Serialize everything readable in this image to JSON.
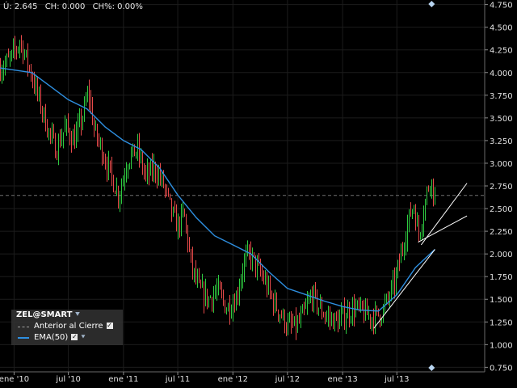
{
  "info": {
    "last": "Ú: 2.645",
    "ch": "CH: 0.000",
    "chp": "CH%: 0.00%"
  },
  "legend": {
    "title": "ZEL@SMART",
    "items": [
      {
        "label": "Anterior al Cierre",
        "color": "#a0a0a0",
        "style": "dashed"
      },
      {
        "label": "EMA(50)",
        "color": "#2e8fe0",
        "style": "solid"
      }
    ]
  },
  "colors": {
    "up": "#2ecc40",
    "down": "#e84a4a",
    "ema": "#2e8fe0",
    "trend": "#ffffff",
    "prev_close": "#a0a0a0",
    "marker": "#b8d4f0"
  },
  "icons": {
    "pin": "pin-icon",
    "check": "checkbox-icon",
    "marker": "diamond-marker-icon"
  },
  "chart_data": {
    "type": "ohlc",
    "xlim": [
      "2009-11-15",
      "2014-04-20"
    ],
    "ylim": [
      0.7,
      4.8
    ],
    "x_ticks": [
      {
        "date": "2010-01-01",
        "label": "ene '10"
      },
      {
        "date": "2010-07-01",
        "label": "jul '10"
      },
      {
        "date": "2011-01-01",
        "label": "ene '11"
      },
      {
        "date": "2011-07-01",
        "label": "jul '11"
      },
      {
        "date": "2012-01-01",
        "label": "ene '12"
      },
      {
        "date": "2012-07-01",
        "label": "jul '12"
      },
      {
        "date": "2013-01-01",
        "label": "ene '13"
      },
      {
        "date": "2013-07-01",
        "label": "jul '13"
      }
    ],
    "y_ticks": [
      "4.750",
      "4.500",
      "4.250",
      "4.000",
      "3.750",
      "3.500",
      "3.250",
      "3.000",
      "2.750",
      "2.500",
      "2.250",
      "2.000",
      "1.750",
      "1.500",
      "1.250",
      "1.000",
      "0.750"
    ],
    "prev_close": 2.645,
    "price_path": [
      [
        "2009-11-15",
        4.05
      ],
      [
        "2009-12-20",
        4.15
      ],
      [
        "2010-01-20",
        4.35
      ],
      [
        "2010-02-25",
        4.0
      ],
      [
        "2010-03-20",
        3.75
      ],
      [
        "2010-04-25",
        3.35
      ],
      [
        "2010-05-20",
        3.15
      ],
      [
        "2010-06-20",
        3.4
      ],
      [
        "2010-07-20",
        3.25
      ],
      [
        "2010-08-20",
        3.55
      ],
      [
        "2010-09-05",
        3.8
      ],
      [
        "2010-09-25",
        3.35
      ],
      [
        "2010-10-20",
        3.15
      ],
      [
        "2010-11-20",
        2.85
      ],
      [
        "2010-12-15",
        2.65
      ],
      [
        "2011-01-15",
        3.05
      ],
      [
        "2011-02-15",
        3.15
      ],
      [
        "2011-03-15",
        2.85
      ],
      [
        "2011-04-15",
        2.95
      ],
      [
        "2011-05-15",
        2.75
      ],
      [
        "2011-06-10",
        2.45
      ],
      [
        "2011-06-30",
        2.3
      ],
      [
        "2011-07-20",
        2.45
      ],
      [
        "2011-08-15",
        1.85
      ],
      [
        "2011-09-10",
        1.6
      ],
      [
        "2011-10-10",
        1.5
      ],
      [
        "2011-11-10",
        1.6
      ],
      [
        "2011-12-10",
        1.4
      ],
      [
        "2012-01-10",
        1.5
      ],
      [
        "2012-02-05",
        1.9
      ],
      [
        "2012-02-25",
        2.0
      ],
      [
        "2012-03-20",
        1.85
      ],
      [
        "2012-04-15",
        1.7
      ],
      [
        "2012-05-10",
        1.5
      ],
      [
        "2012-06-05",
        1.35
      ],
      [
        "2012-07-01",
        1.2
      ],
      [
        "2012-08-01",
        1.2
      ],
      [
        "2012-08-25",
        1.35
      ],
      [
        "2012-09-20",
        1.55
      ],
      [
        "2012-10-15",
        1.4
      ],
      [
        "2012-11-10",
        1.3
      ],
      [
        "2012-12-15",
        1.25
      ],
      [
        "2013-01-15",
        1.35
      ],
      [
        "2013-02-10",
        1.4
      ],
      [
        "2013-03-10",
        1.35
      ],
      [
        "2013-04-10",
        1.3
      ],
      [
        "2013-05-10",
        1.35
      ],
      [
        "2013-06-01",
        1.5
      ],
      [
        "2013-06-25",
        1.7
      ],
      [
        "2013-07-20",
        2.1
      ],
      [
        "2013-08-10",
        2.4
      ],
      [
        "2013-08-25",
        2.55
      ],
      [
        "2013-09-10",
        2.2
      ],
      [
        "2013-09-25",
        2.45
      ],
      [
        "2013-10-10",
        2.7
      ],
      [
        "2013-10-20",
        2.85
      ],
      [
        "2013-11-05",
        2.6
      ]
    ],
    "ema_path": [
      [
        "2009-11-15",
        4.05
      ],
      [
        "2010-03-01",
        4.0
      ],
      [
        "2010-05-01",
        3.85
      ],
      [
        "2010-07-01",
        3.7
      ],
      [
        "2010-09-01",
        3.6
      ],
      [
        "2010-11-01",
        3.4
      ],
      [
        "2011-01-01",
        3.25
      ],
      [
        "2011-03-01",
        3.15
      ],
      [
        "2011-05-01",
        2.95
      ],
      [
        "2011-07-01",
        2.65
      ],
      [
        "2011-09-01",
        2.4
      ],
      [
        "2011-11-01",
        2.2
      ],
      [
        "2012-01-01",
        2.1
      ],
      [
        "2012-03-01",
        2.0
      ],
      [
        "2012-05-01",
        1.8
      ],
      [
        "2012-07-01",
        1.62
      ],
      [
        "2012-09-01",
        1.55
      ],
      [
        "2012-11-01",
        1.48
      ],
      [
        "2013-01-01",
        1.42
      ],
      [
        "2013-03-01",
        1.38
      ],
      [
        "2013-05-01",
        1.37
      ],
      [
        "2013-07-01",
        1.55
      ],
      [
        "2013-09-01",
        1.85
      ],
      [
        "2013-11-05",
        2.05
      ]
    ],
    "trend_lines": [
      {
        "from": [
          "2013-04-15",
          1.18
        ],
        "to": [
          "2013-11-05",
          2.05
        ]
      },
      {
        "from": [
          "2013-09-10",
          2.13
        ],
        "to": [
          "2014-02-20",
          2.42
        ]
      },
      {
        "from": [
          "2013-09-20",
          2.1
        ],
        "to": [
          "2014-02-20",
          2.78
        ]
      }
    ],
    "markers": [
      "2013-10-25"
    ]
  }
}
